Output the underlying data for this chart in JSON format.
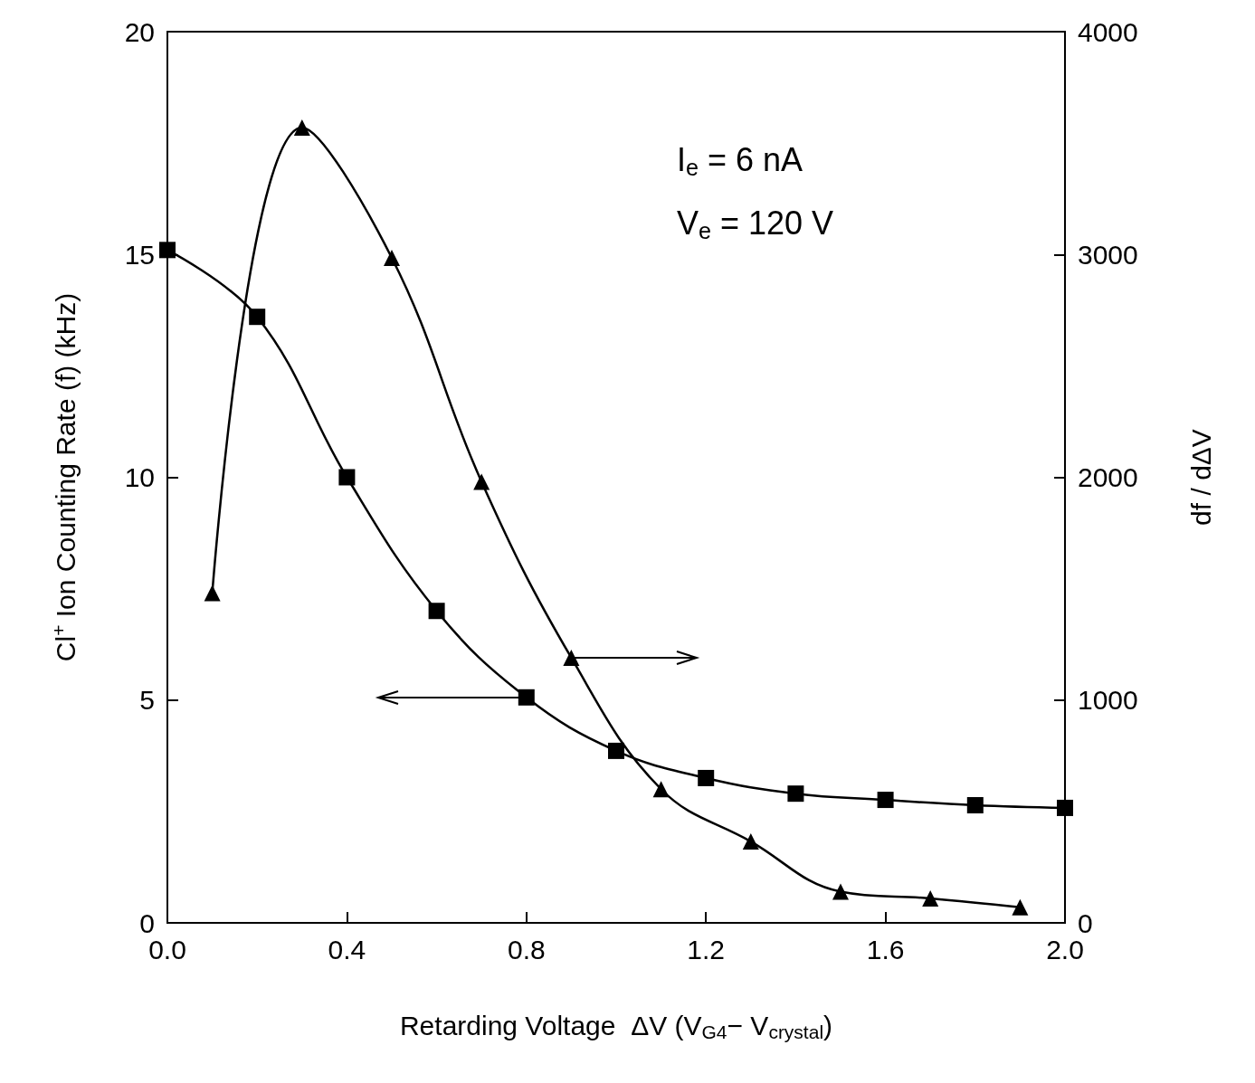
{
  "chart_data": {
    "type": "line",
    "xlabel": "Retarding Voltage  ΔV (V$_{G4}$− V$_{crystal}$)",
    "ylabel": "Cl$^{+}$ Ion Counting Rate (f) (kHz)",
    "y2label": "df / dΔV",
    "x": [
      0,
      0.2,
      0.4,
      0.6,
      0.8,
      1.0,
      1.2,
      1.4,
      1.6,
      1.8,
      2.0
    ],
    "series": [
      {
        "color": "#000000",
        "marker": "square",
        "values": [
          15.1,
          13.6,
          10.0,
          7.0,
          5.06,
          3.86,
          3.25,
          2.9,
          2.76,
          2.64,
          2.58
        ]
      },
      {
        "color": "#000000",
        "marker": "triangle",
        "axis": "y2",
        "x": [
          0.1,
          0.3,
          0.5,
          0.7,
          0.9,
          1.1,
          1.3,
          1.5,
          1.7,
          1.9
        ],
        "values": [
          1480,
          3570,
          2985,
          1980,
          1190,
          600,
          365,
          140,
          110,
          70
        ]
      }
    ],
    "xlim": [
      0,
      2.0
    ],
    "xticks": [
      {
        "value": 0,
        "label": "0.0"
      },
      0.4,
      0.8,
      1.2,
      1.6,
      {
        "value": 2.0,
        "label": "2.0"
      }
    ],
    "ylim": [
      0,
      20
    ],
    "yticks": [
      0,
      5,
      10,
      15,
      20
    ],
    "y2lim": [
      0,
      4000
    ],
    "y2ticks": [
      0,
      1000,
      2000,
      3000,
      4000
    ],
    "line_style": "solid",
    "annotations": [
      "I$_{e}$ = 6 nA",
      "V$_{e}$ = 120 V"
    ]
  }
}
